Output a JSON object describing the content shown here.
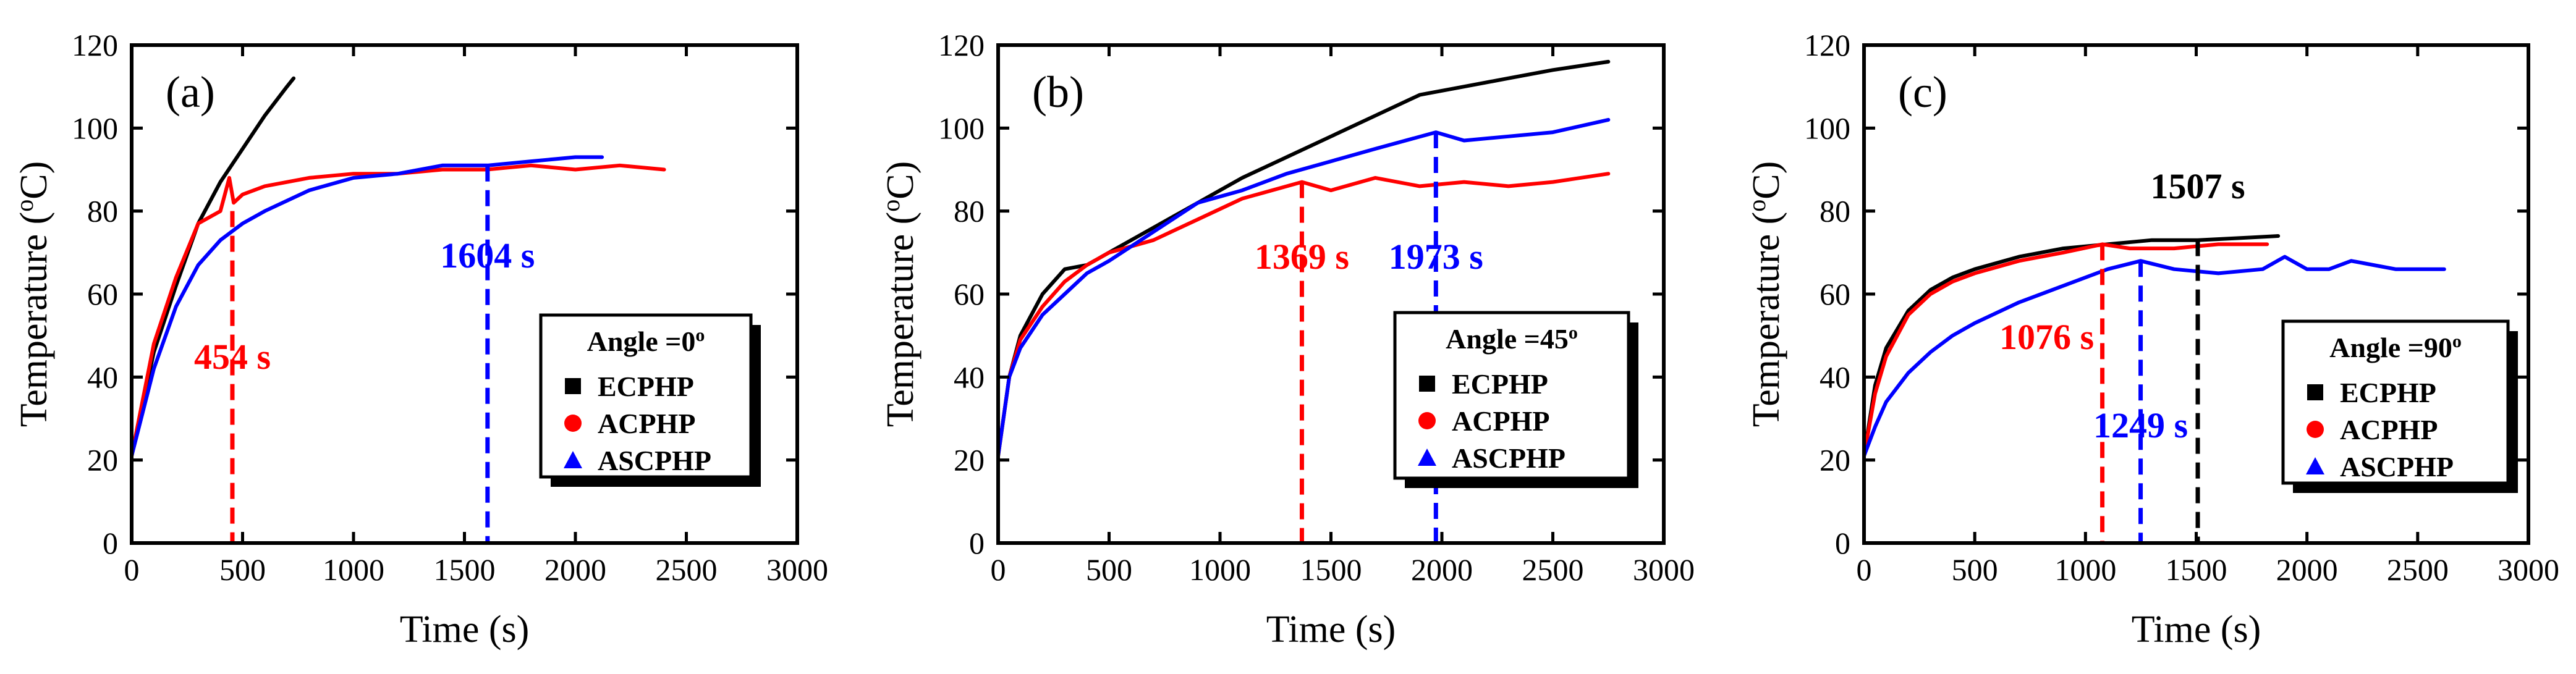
{
  "chart_data": [
    {
      "panel_label": "(a)",
      "type": "line",
      "xlabel": "Time (s)",
      "ylabel": "Temperature (",
      "ylabel_unit": "oC",
      "ylabel_close": ")",
      "xlim": [
        0,
        3000
      ],
      "ylim": [
        0,
        120
      ],
      "xticks": [
        "0",
        "500",
        "1000",
        "1500",
        "2000",
        "2500",
        "3000"
      ],
      "yticks": [
        "0",
        "20",
        "40",
        "60",
        "80",
        "100",
        "120"
      ],
      "legend": {
        "title": "Angle =0",
        "title_sup": "o",
        "entries": [
          "ECPHP",
          "ACPHP",
          "ASCPHP"
        ],
        "position": "bottom-right"
      },
      "series": [
        {
          "name": "ECPHP",
          "color": "#000000",
          "x": [
            0,
            100,
            200,
            300,
            400,
            500,
            600,
            700,
            730
          ],
          "y": [
            21,
            46,
            62,
            77,
            87,
            95,
            103,
            110,
            112
          ]
        },
        {
          "name": "ACPHP",
          "color": "#ff0000",
          "x": [
            0,
            100,
            200,
            300,
            400,
            420,
            440,
            460,
            500,
            600,
            800,
            1000,
            1200,
            1400,
            1600,
            1800,
            2000,
            2200,
            2400
          ],
          "y": [
            21,
            48,
            64,
            77,
            80,
            84,
            88,
            82,
            84,
            86,
            88,
            89,
            89,
            90,
            90,
            91,
            90,
            91,
            90
          ]
        },
        {
          "name": "ASCPHP",
          "color": "#0000ff",
          "x": [
            0,
            100,
            200,
            300,
            400,
            500,
            600,
            800,
            1000,
            1200,
            1400,
            1604,
            1800,
            2000,
            2120
          ],
          "y": [
            21,
            42,
            57,
            67,
            73,
            77,
            80,
            85,
            88,
            89,
            91,
            91,
            92,
            93,
            93
          ]
        }
      ],
      "annotations": [
        {
          "text": "454 s",
          "color": "#ff0000",
          "x": 454,
          "y_top": 80
        },
        {
          "text": "1604 s",
          "color": "#0000ff",
          "x": 1604,
          "y_top": 91
        }
      ]
    },
    {
      "panel_label": "(b)",
      "type": "line",
      "xlabel": "Time (s)",
      "ylabel": "Temperature (",
      "ylabel_unit": "oC",
      "ylabel_close": ")",
      "xlim": [
        0,
        3000
      ],
      "ylim": [
        0,
        120
      ],
      "xticks": [
        "0",
        "500",
        "1000",
        "1500",
        "2000",
        "2500",
        "3000"
      ],
      "yticks": [
        "0",
        "20",
        "40",
        "60",
        "80",
        "100",
        "120"
      ],
      "legend": {
        "title": "Angle =45",
        "title_sup": "o",
        "entries": [
          "ECPHP",
          "ACPHP",
          "ASCPHP"
        ],
        "position": "bottom-right"
      },
      "series": [
        {
          "name": "ECPHP",
          "color": "#000000",
          "x": [
            0,
            50,
            100,
            200,
            300,
            400,
            500,
            700,
            900,
            1100,
            1300,
            1500,
            1700,
            1900,
            2100,
            2300,
            2500,
            2750
          ],
          "y": [
            21,
            40,
            50,
            60,
            66,
            67,
            70,
            76,
            82,
            88,
            93,
            98,
            103,
            108,
            110,
            112,
            114,
            116
          ]
        },
        {
          "name": "ACPHP",
          "color": "#ff0000",
          "x": [
            0,
            50,
            100,
            200,
            300,
            400,
            500,
            700,
            900,
            1100,
            1369,
            1500,
            1700,
            1900,
            2100,
            2300,
            2500,
            2750
          ],
          "y": [
            21,
            40,
            49,
            57,
            63,
            67,
            70,
            73,
            78,
            83,
            87,
            85,
            88,
            86,
            87,
            86,
            87,
            89
          ]
        },
        {
          "name": "ASCPHP",
          "color": "#0000ff",
          "x": [
            0,
            50,
            100,
            200,
            300,
            400,
            500,
            700,
            900,
            1100,
            1300,
            1500,
            1700,
            1973,
            2100,
            2300,
            2500,
            2750
          ],
          "y": [
            21,
            40,
            47,
            55,
            60,
            65,
            68,
            75,
            82,
            85,
            89,
            92,
            95,
            99,
            97,
            98,
            99,
            102
          ]
        }
      ],
      "annotations": [
        {
          "text": "1369 s",
          "color": "#ff0000",
          "x": 1369,
          "y_top": 87
        },
        {
          "text": "1973 s",
          "color": "#0000ff",
          "x": 1973,
          "y_top": 99
        }
      ]
    },
    {
      "panel_label": "(c)",
      "type": "line",
      "xlabel": "Time (s)",
      "ylabel": "Temperature (",
      "ylabel_unit": "oC",
      "ylabel_close": ")",
      "xlim": [
        0,
        3000
      ],
      "ylim": [
        0,
        120
      ],
      "xticks": [
        "0",
        "500",
        "1000",
        "1500",
        "2000",
        "2500",
        "3000"
      ],
      "yticks": [
        "0",
        "20",
        "40",
        "60",
        "80",
        "100",
        "120"
      ],
      "legend": {
        "title": "Angle =90",
        "title_sup": "o",
        "entries": [
          "ECPHP",
          "ACPHP",
          "ASCPHP"
        ],
        "position": "bottom-right"
      },
      "series": [
        {
          "name": "ECPHP",
          "color": "#000000",
          "x": [
            0,
            50,
            100,
            200,
            300,
            400,
            500,
            700,
            900,
            1100,
            1300,
            1507,
            1700,
            1870
          ],
          "y": [
            21,
            38,
            47,
            56,
            61,
            64,
            66,
            69,
            71,
            72,
            73,
            73,
            73.5,
            74
          ]
        },
        {
          "name": "ACPHP",
          "color": "#ff0000",
          "x": [
            0,
            50,
            100,
            200,
            300,
            400,
            500,
            700,
            900,
            1076,
            1200,
            1400,
            1600,
            1820
          ],
          "y": [
            21,
            36,
            45,
            55,
            60,
            63,
            65,
            68,
            70,
            72,
            71,
            71,
            72,
            72
          ]
        },
        {
          "name": "ASCPHP",
          "color": "#0000ff",
          "x": [
            0,
            50,
            100,
            200,
            300,
            400,
            500,
            700,
            900,
            1100,
            1249,
            1400,
            1600,
            1800,
            1900,
            2000,
            2100,
            2200,
            2300,
            2400,
            2500,
            2620
          ],
          "y": [
            21,
            28,
            34,
            41,
            46,
            50,
            53,
            58,
            62,
            66,
            68,
            66,
            65,
            66,
            69,
            66,
            66,
            68,
            67,
            66,
            66,
            66
          ]
        }
      ],
      "annotations": [
        {
          "text": "1507 s",
          "color": "#000000",
          "x": 1507,
          "y_top": 73
        },
        {
          "text": "1076 s",
          "color": "#ff0000",
          "x": 1076,
          "y_top": 72
        },
        {
          "text": "1249 s",
          "color": "#0000ff",
          "x": 1249,
          "y_top": 68
        }
      ]
    }
  ]
}
